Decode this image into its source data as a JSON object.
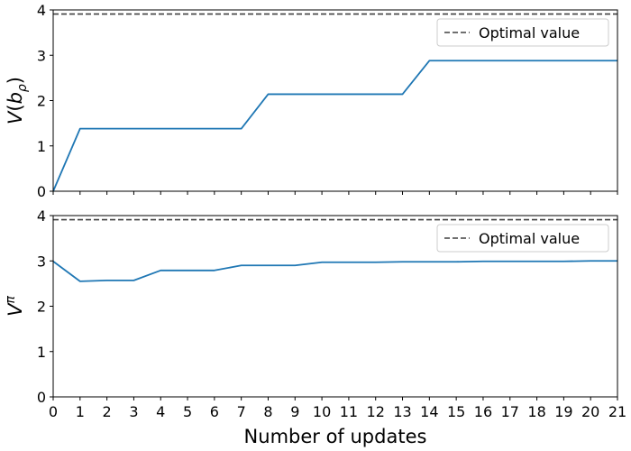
{
  "chart_data": [
    {
      "type": "line",
      "title": "",
      "xlabel": "",
      "ylabel": "V(bρ)",
      "ylabel_math": {
        "base": "V(b",
        "sub": "ρ",
        "close": ")"
      },
      "xlim": [
        0,
        21
      ],
      "ylim": [
        0,
        4
      ],
      "yticks": [
        0,
        1,
        2,
        3,
        4
      ],
      "x_ticklabels_visible": false,
      "grid": false,
      "legend": {
        "placement": "top-right"
      },
      "series": [
        {
          "name": "",
          "color": "#1f77b4",
          "x": [
            0,
            1,
            2,
            3,
            4,
            5,
            6,
            7,
            8,
            9,
            10,
            11,
            12,
            13,
            14,
            15,
            16,
            17,
            18,
            19,
            20,
            21
          ],
          "y": [
            0,
            1.38,
            1.38,
            1.38,
            1.38,
            1.38,
            1.38,
            1.38,
            2.14,
            2.14,
            2.14,
            2.14,
            2.14,
            2.14,
            2.88,
            2.88,
            2.88,
            2.88,
            2.88,
            2.88,
            2.88,
            2.88
          ]
        }
      ],
      "reference_line": {
        "name": "Optimal value",
        "y": 3.91,
        "style": "dashed",
        "color": "#404040"
      }
    },
    {
      "type": "line",
      "title": "",
      "xlabel": "Number of updates",
      "ylabel": "Vπ",
      "ylabel_math": {
        "base": "V",
        "sup": "π"
      },
      "xlim": [
        0,
        21
      ],
      "ylim": [
        0,
        4
      ],
      "xticks": [
        0,
        1,
        2,
        3,
        4,
        5,
        6,
        7,
        8,
        9,
        10,
        11,
        12,
        13,
        14,
        15,
        16,
        17,
        18,
        19,
        20,
        21
      ],
      "yticks": [
        0,
        1,
        2,
        3,
        4
      ],
      "grid": false,
      "legend": {
        "placement": "top-right"
      },
      "series": [
        {
          "name": "",
          "color": "#1f77b4",
          "x": [
            0,
            1,
            2,
            3,
            4,
            5,
            6,
            7,
            8,
            9,
            10,
            11,
            12,
            13,
            14,
            15,
            16,
            17,
            18,
            19,
            20,
            21
          ],
          "y": [
            2.99,
            2.55,
            2.57,
            2.57,
            2.79,
            2.79,
            2.79,
            2.9,
            2.9,
            2.9,
            2.97,
            2.97,
            2.97,
            2.98,
            2.98,
            2.98,
            2.99,
            2.99,
            2.99,
            2.99,
            3.0,
            3.0
          ]
        }
      ],
      "reference_line": {
        "name": "Optimal value",
        "y": 3.91,
        "style": "dashed",
        "color": "#404040"
      }
    }
  ]
}
